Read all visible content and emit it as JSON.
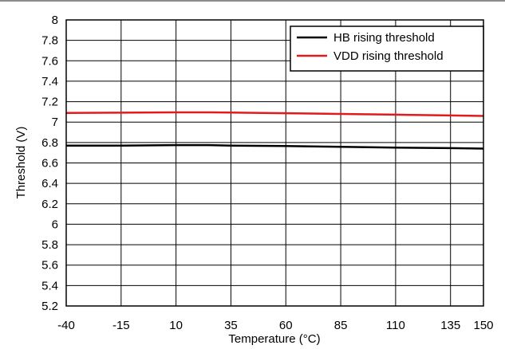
{
  "chart_data": {
    "type": "line",
    "title": "",
    "xlabel": "Temperature (°C)",
    "ylabel": "Threshold (V)",
    "xlim": [
      -40,
      150
    ],
    "ylim": [
      5.2,
      8
    ],
    "x_ticks": [
      -40,
      -15,
      10,
      35,
      60,
      85,
      110,
      135,
      150
    ],
    "y_ticks": [
      5.2,
      5.4,
      5.6,
      5.8,
      6,
      6.2,
      6.4,
      6.6,
      6.8,
      7,
      7.2,
      7.4,
      7.6,
      7.8,
      8
    ],
    "grid": true,
    "legend_position": "top-right",
    "series": [
      {
        "name": "HB rising threshold",
        "color": "#000000",
        "x": [
          -40,
          -15,
          10,
          25,
          35,
          60,
          85,
          110,
          135,
          150
        ],
        "y": [
          6.77,
          6.77,
          6.775,
          6.775,
          6.77,
          6.765,
          6.758,
          6.75,
          6.745,
          6.74
        ]
      },
      {
        "name": "VDD rising threshold",
        "color": "#e31a1c",
        "x": [
          -40,
          -15,
          10,
          25,
          35,
          60,
          85,
          110,
          135,
          150
        ],
        "y": [
          7.09,
          7.092,
          7.095,
          7.095,
          7.093,
          7.087,
          7.08,
          7.073,
          7.065,
          7.06
        ]
      }
    ]
  }
}
